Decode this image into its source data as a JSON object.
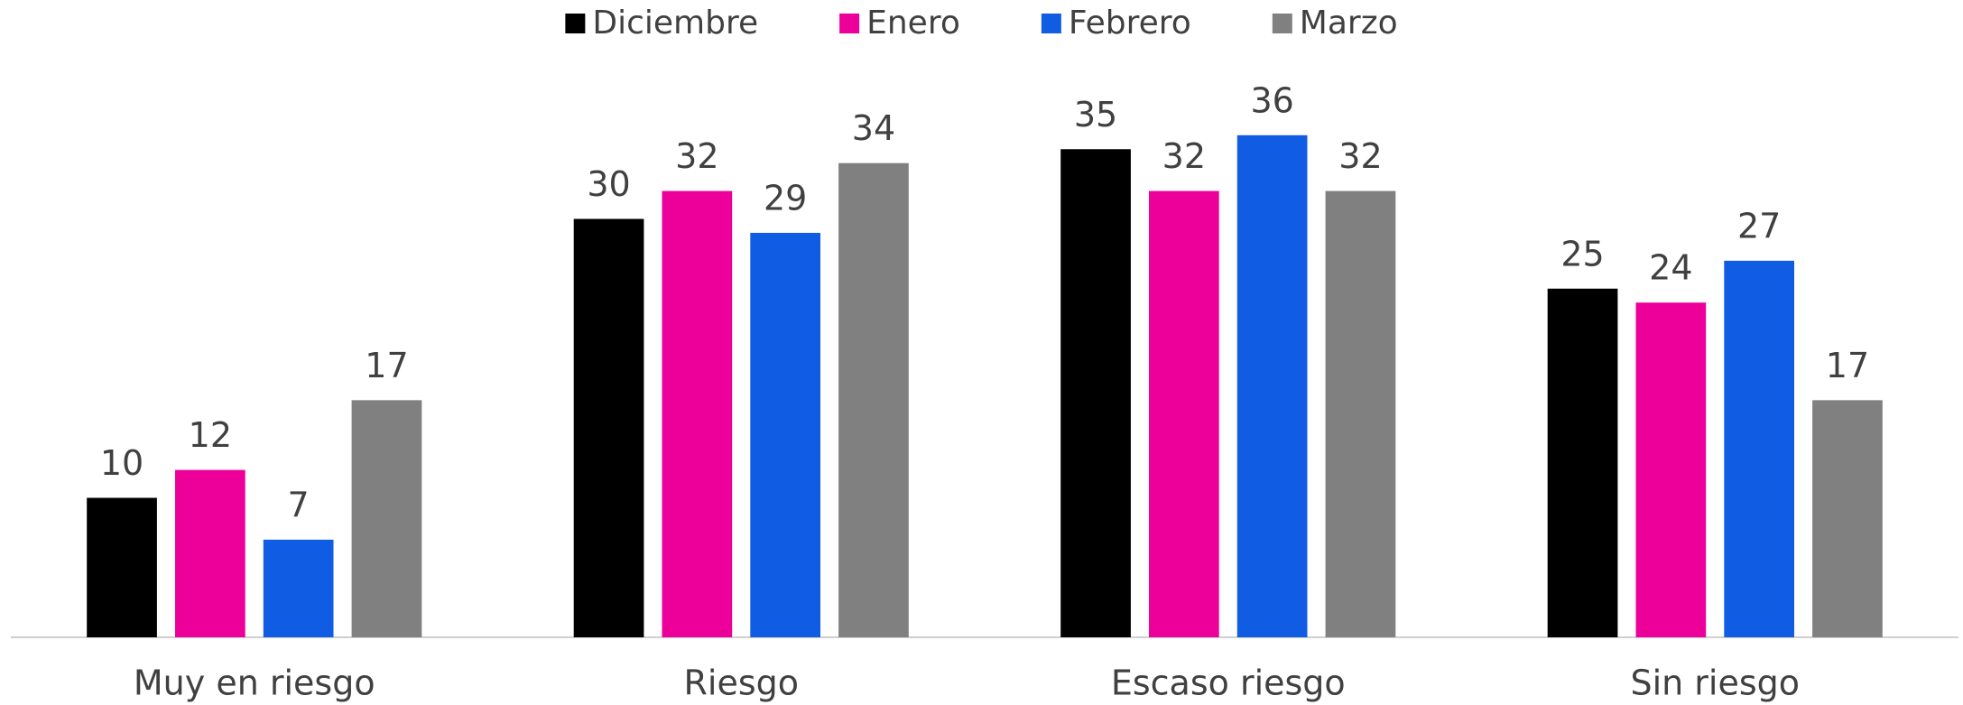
{
  "chart_data": {
    "type": "bar",
    "categories": [
      "Muy en riesgo",
      "Riesgo",
      "Escaso riesgo",
      "Sin riesgo"
    ],
    "series": [
      {
        "name": "Diciembre",
        "color": "#000000",
        "values": [
          10,
          30,
          35,
          25
        ]
      },
      {
        "name": "Enero",
        "color": "#ec0099",
        "values": [
          12,
          32,
          32,
          24
        ]
      },
      {
        "name": "Febrero",
        "color": "#105ce3",
        "values": [
          7,
          29,
          36,
          27
        ]
      },
      {
        "name": "Marzo",
        "color": "#808080",
        "values": [
          17,
          34,
          32,
          17
        ]
      }
    ],
    "ylim": [
      0,
      40
    ],
    "legend": "top"
  }
}
